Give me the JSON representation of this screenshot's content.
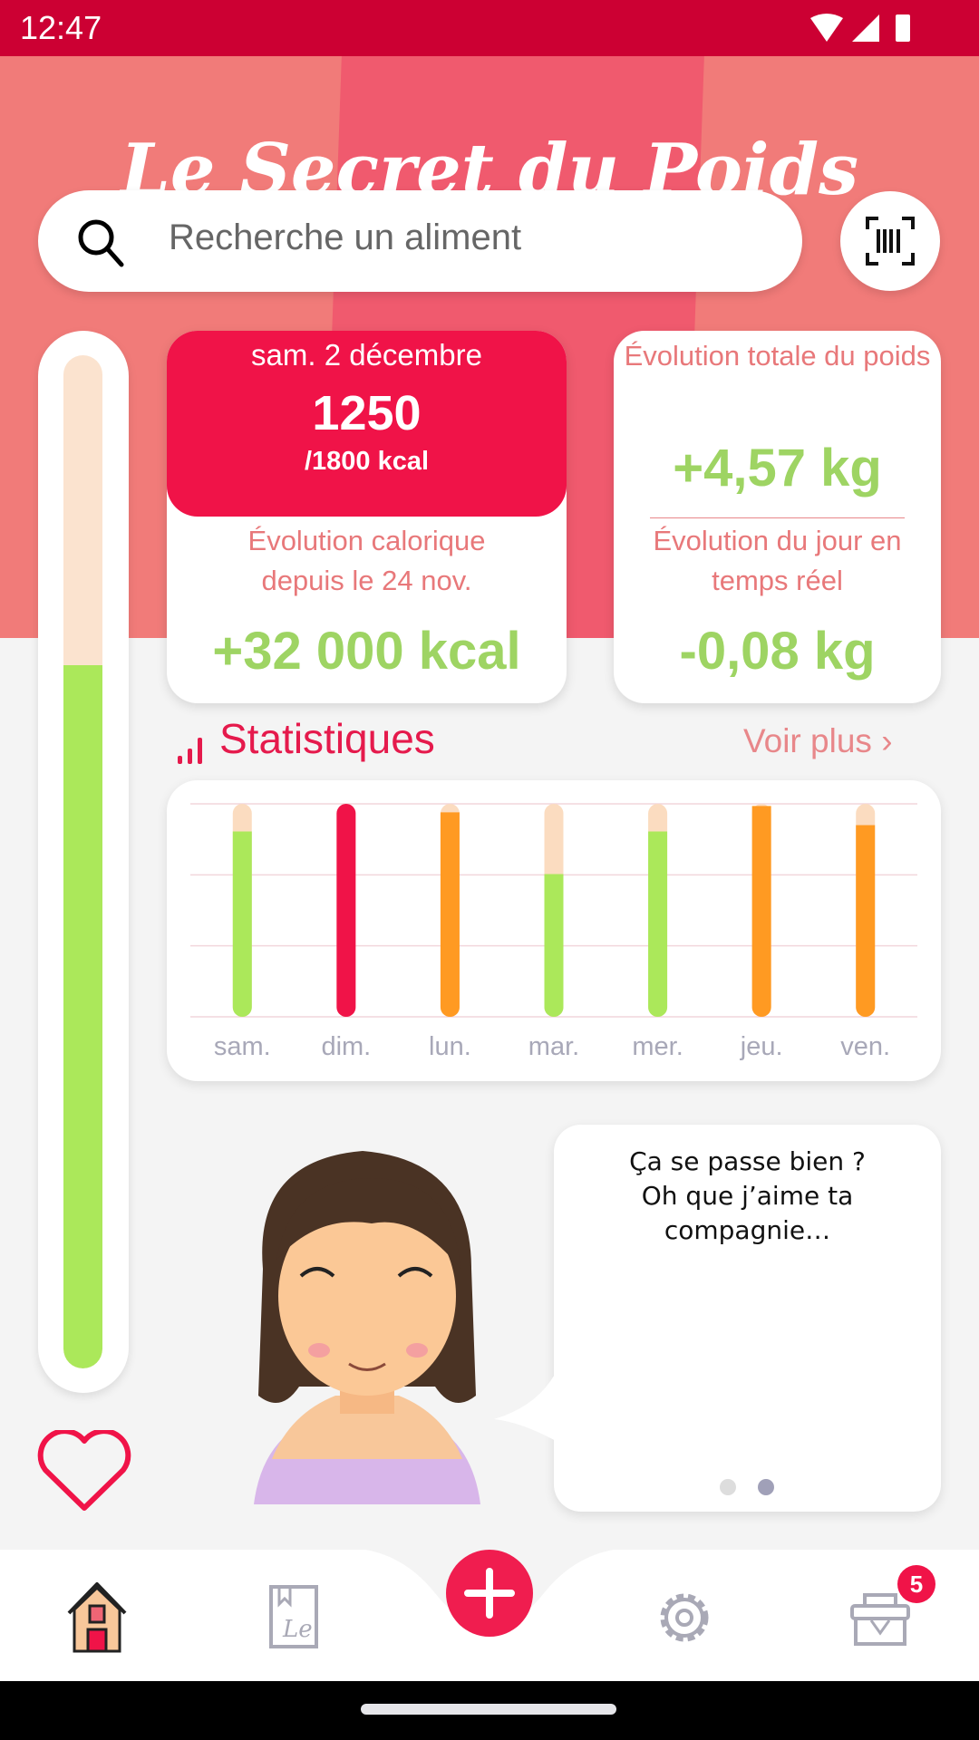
{
  "status_bar": {
    "time": "12:47",
    "icons": [
      "wifi-icon",
      "signal-icon",
      "battery-icon"
    ]
  },
  "header": {
    "logo": "Le Secret du Poids",
    "search": {
      "placeholder": "Recherche un aliment"
    },
    "scan_icon": "barcode-scan-icon"
  },
  "calorie_gauge": {
    "fraction": 0.694,
    "colors": {
      "fill": "#abe85a",
      "track": "#fbe3cf"
    }
  },
  "calorie_card": {
    "date": "sam. 2 décembre",
    "consumed": "1250",
    "goal": "/1800 kcal",
    "evolution_label": "Évolution calorique depuis le 24 nov.",
    "evolution_value": "+32 000 kcal"
  },
  "weight_card": {
    "total_label": "Évolution totale du poids",
    "total_value": "+4,57 kg",
    "day_label": "Évolution du jour en temps réel",
    "day_value": "-0,08 kg"
  },
  "stats": {
    "title": "Statistiques",
    "more": "Voir plus ›"
  },
  "chart_data": {
    "type": "bar",
    "categories": [
      "sam.",
      "dim.",
      "lun.",
      "mar.",
      "mer.",
      "jeu.",
      "ven."
    ],
    "values": [
      0.87,
      1.0,
      0.96,
      0.67,
      0.87,
      0.99,
      0.9
    ],
    "status": [
      "under",
      "over",
      "near",
      "under",
      "under",
      "near",
      "near"
    ],
    "ylim": [
      0,
      1
    ],
    "grid": true,
    "colors": {
      "under": "#abe85a",
      "near": "#ff9a22",
      "over": "#f01348",
      "track": "#fbdcc0"
    }
  },
  "coach": {
    "message": "Ça se passe bien ?\nOh que j’aime ta compagnie…",
    "page": 2,
    "pages": 2
  },
  "nav": {
    "items": [
      "home",
      "book",
      "add",
      "settings",
      "basket"
    ],
    "basket_badge": "5"
  },
  "colors": {
    "brand": "#f01348",
    "status": "#cc0033",
    "positive": "#9ed463"
  }
}
